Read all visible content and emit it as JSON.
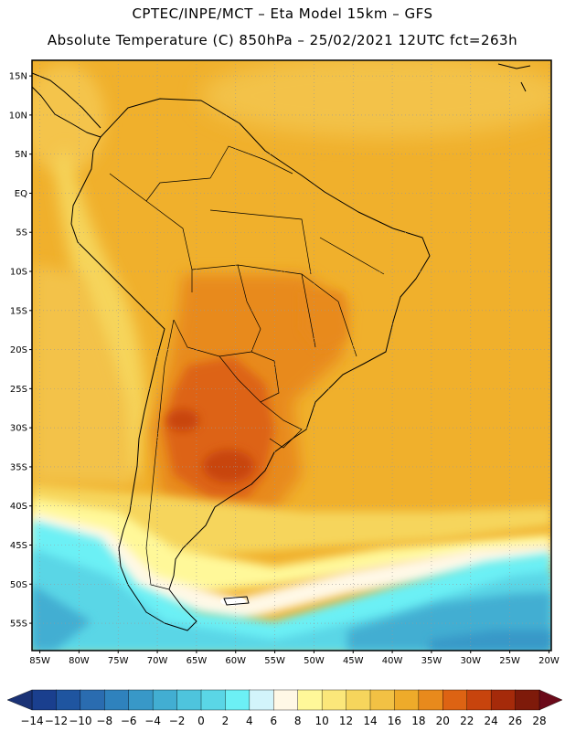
{
  "header": {
    "line1": "CPTEC/INPE/MCT –  Eta Model 15km – GFS",
    "line2": "Absolute Temperature (C) 850hPa – 25/02/2021 12UTC fct=263h"
  },
  "map": {
    "lon_range": [
      -86,
      -19.7
    ],
    "lat_range": [
      -58.5,
      17
    ],
    "lat_ticks": [
      {
        "value": 15,
        "label": "15N"
      },
      {
        "value": 10,
        "label": "10N"
      },
      {
        "value": 5,
        "label": "5N"
      },
      {
        "value": 0,
        "label": "EQ"
      },
      {
        "value": -5,
        "label": "5S"
      },
      {
        "value": -10,
        "label": "10S"
      },
      {
        "value": -15,
        "label": "15S"
      },
      {
        "value": -20,
        "label": "20S"
      },
      {
        "value": -25,
        "label": "25S"
      },
      {
        "value": -30,
        "label": "30S"
      },
      {
        "value": -35,
        "label": "35S"
      },
      {
        "value": -40,
        "label": "40S"
      },
      {
        "value": -45,
        "label": "45S"
      },
      {
        "value": -50,
        "label": "50S"
      },
      {
        "value": -55,
        "label": "55S"
      }
    ],
    "lon_ticks": [
      {
        "value": -85,
        "label": "85W"
      },
      {
        "value": -80,
        "label": "80W"
      },
      {
        "value": -75,
        "label": "75W"
      },
      {
        "value": -70,
        "label": "70W"
      },
      {
        "value": -65,
        "label": "65W"
      },
      {
        "value": -60,
        "label": "60W"
      },
      {
        "value": -55,
        "label": "55W"
      },
      {
        "value": -50,
        "label": "50W"
      },
      {
        "value": -45,
        "label": "45W"
      },
      {
        "value": -40,
        "label": "40W"
      },
      {
        "value": -35,
        "label": "35W"
      },
      {
        "value": -30,
        "label": "30W"
      },
      {
        "value": -25,
        "label": "25W"
      },
      {
        "value": -20,
        "label": "20W"
      }
    ]
  },
  "colorbar": {
    "labels": [
      "-14",
      "-12",
      "-10",
      "-8",
      "-6",
      "-4",
      "-2",
      "0",
      "2",
      "4",
      "6",
      "8",
      "10",
      "12",
      "14",
      "16",
      "18",
      "20",
      "22",
      "24",
      "26",
      "28"
    ],
    "colors": [
      "#1a3f8e",
      "#1f55a0",
      "#2a6cb0",
      "#2f82bd",
      "#3898c8",
      "#42aed2",
      "#4ec4dd",
      "#5ad6e6",
      "#6cf0f5",
      "#d2f4fb",
      "#fff8e6",
      "#fff899",
      "#fbe77a",
      "#f6d55c",
      "#f2c144",
      "#eeab2a",
      "#e88a1c",
      "#dd6313",
      "#c8440d",
      "#a52a0a",
      "#7e1a0a"
    ],
    "under_color": "#1a3275",
    "over_color": "#6b0a1a"
  }
}
